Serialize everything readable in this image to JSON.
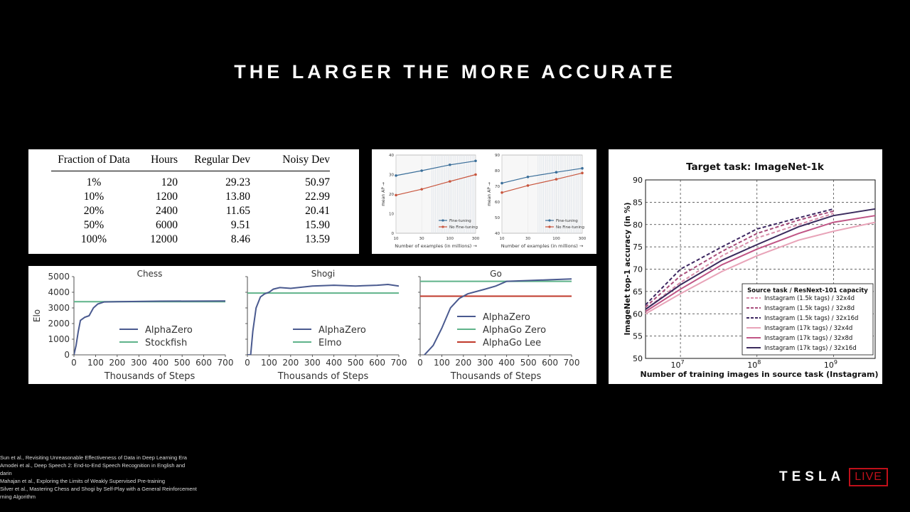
{
  "slide": {
    "title": "THE LARGER THE MORE ACCURATE",
    "references": [
      "Sun et al., Revisiting Unreasonable Effectiveness of Data in Deep Learning Era",
      "Amodei et al., Deep Speech 2: End-to-End Speech Recognition in English and",
      "darin",
      "Mahajan et al., Exploring the Limits of Weakly Supervised Pre-training",
      "Silver et al., Mastering Chess and Shogi by Self-Play with a General Reinforcement",
      "rning Algorithm"
    ],
    "logo": {
      "text": "TESLA",
      "live": "LIVE",
      "live_color": "#c0101a"
    }
  },
  "chart_data": [
    {
      "type": "table",
      "columns": [
        "Fraction of Data",
        "Hours",
        "Regular Dev",
        "Noisy Dev"
      ],
      "rows": [
        [
          "1%",
          "120",
          "29.23",
          "50.97"
        ],
        [
          "10%",
          "1200",
          "13.80",
          "22.99"
        ],
        [
          "20%",
          "2400",
          "11.65",
          "20.41"
        ],
        [
          "50%",
          "6000",
          "9.51",
          "15.90"
        ],
        [
          "100%",
          "12000",
          "8.46",
          "13.59"
        ]
      ]
    },
    {
      "type": "line",
      "xlabel": "Number of examples (in millions) →",
      "ylabel": "mean AP →",
      "x": [
        10,
        30,
        100,
        300
      ],
      "xticks": [
        "10",
        "30",
        "100",
        "300"
      ],
      "ylim": [
        0,
        40
      ],
      "yticks": [
        0,
        10,
        20,
        30,
        40
      ],
      "legend_position": "bottom-right",
      "series": [
        {
          "name": "Fine-tuning",
          "color": "#3b6f9a",
          "values": [
            29.5,
            32,
            35,
            37
          ]
        },
        {
          "name": "No Fine-tuning",
          "color": "#c8553d",
          "values": [
            19.5,
            22.5,
            26.5,
            30
          ]
        }
      ]
    },
    {
      "type": "line",
      "xlabel": "Number of examples (in millions) →",
      "ylabel": "mean AP →",
      "x": [
        10,
        30,
        100,
        300
      ],
      "xticks": [
        "10",
        "30",
        "100",
        "300"
      ],
      "ylim": [
        40,
        90
      ],
      "yticks": [
        40,
        50,
        60,
        70,
        80,
        90
      ],
      "legend_position": "bottom-right",
      "series": [
        {
          "name": "Fine-tuning",
          "color": "#3b6f9a",
          "values": [
            72,
            76,
            79,
            81.5
          ]
        },
        {
          "name": "No Fine-tuning",
          "color": "#c8553d",
          "values": [
            66,
            70.5,
            74.5,
            78.5
          ]
        }
      ]
    },
    {
      "type": "line",
      "title": "Chess",
      "xlabel": "Thousands of Steps",
      "ylabel": "Elo",
      "xlim": [
        0,
        700
      ],
      "ylim": [
        0,
        5000
      ],
      "xticks": [
        0,
        100,
        200,
        300,
        400,
        500,
        600,
        700
      ],
      "yticks": [
        0,
        1000,
        2000,
        3000,
        4000,
        5000
      ],
      "legend_position": "lower-right",
      "series": [
        {
          "name": "AlphaZero",
          "color": "#4a5a8f",
          "points": [
            [
              0,
              0
            ],
            [
              10,
              600
            ],
            [
              20,
              1500
            ],
            [
              30,
              2200
            ],
            [
              50,
              2400
            ],
            [
              70,
              2500
            ],
            [
              90,
              3000
            ],
            [
              110,
              3250
            ],
            [
              140,
              3380
            ],
            [
              200,
              3400
            ],
            [
              400,
              3430
            ],
            [
              700,
              3440
            ]
          ]
        },
        {
          "name": "Stockfish",
          "color": "#5fb38a",
          "points": [
            [
              0,
              3400
            ],
            [
              700,
              3400
            ]
          ]
        }
      ]
    },
    {
      "type": "line",
      "title": "Shogi",
      "xlabel": "Thousands of Steps",
      "ylabel": "",
      "xlim": [
        0,
        700
      ],
      "ylim": [
        0,
        5000
      ],
      "xticks": [
        0,
        100,
        200,
        300,
        400,
        500,
        600,
        700
      ],
      "yticks": [
        0,
        1000,
        2000,
        3000,
        4000,
        5000
      ],
      "legend_position": "lower-right",
      "series": [
        {
          "name": "AlphaZero",
          "color": "#4a5a8f",
          "points": [
            [
              0,
              0
            ],
            [
              15,
              0
            ],
            [
              25,
              1500
            ],
            [
              40,
              3000
            ],
            [
              60,
              3700
            ],
            [
              80,
              3900
            ],
            [
              100,
              4000
            ],
            [
              120,
              4200
            ],
            [
              150,
              4300
            ],
            [
              200,
              4250
            ],
            [
              300,
              4400
            ],
            [
              400,
              4450
            ],
            [
              500,
              4400
            ],
            [
              600,
              4450
            ],
            [
              650,
              4500
            ],
            [
              700,
              4400
            ]
          ]
        },
        {
          "name": "Elmo",
          "color": "#5fb38a",
          "points": [
            [
              0,
              3950
            ],
            [
              700,
              3950
            ]
          ]
        }
      ]
    },
    {
      "type": "line",
      "title": "Go",
      "xlabel": "Thousands of Steps",
      "ylabel": "",
      "xlim": [
        0,
        700
      ],
      "ylim": [
        0,
        5000
      ],
      "xticks": [
        0,
        100,
        200,
        300,
        400,
        500,
        600,
        700
      ],
      "yticks": [
        0,
        1000,
        2000,
        3000,
        4000,
        5000
      ],
      "legend_position": "lower-right",
      "series": [
        {
          "name": "AlphaZero",
          "color": "#4a5a8f",
          "points": [
            [
              0,
              -2000
            ],
            [
              20,
              0
            ],
            [
              60,
              600
            ],
            [
              100,
              1700
            ],
            [
              140,
              3000
            ],
            [
              180,
              3600
            ],
            [
              220,
              3900
            ],
            [
              300,
              4200
            ],
            [
              350,
              4400
            ],
            [
              400,
              4700
            ],
            [
              500,
              4750
            ],
            [
              600,
              4800
            ],
            [
              700,
              4850
            ]
          ]
        },
        {
          "name": "AlphaGo Zero",
          "color": "#5fb38a",
          "points": [
            [
              0,
              4700
            ],
            [
              700,
              4700
            ]
          ]
        },
        {
          "name": "AlphaGo Lee",
          "color": "#c0392b",
          "points": [
            [
              0,
              3750
            ],
            [
              700,
              3750
            ]
          ]
        }
      ]
    },
    {
      "type": "line",
      "title": "Target task: ImageNet-1k",
      "xlabel": "Number of training images in source task (Instagram)",
      "ylabel": "ImageNet top-1 accuracy (in %)",
      "xscale": "log",
      "xlim": [
        3500000,
        3500000000
      ],
      "ylim": [
        50,
        90
      ],
      "xticks": [
        10000000,
        100000000,
        1000000000
      ],
      "xticklabels": [
        {
          "base": "10",
          "exp": "7"
        },
        {
          "base": "10",
          "exp": "8"
        },
        {
          "base": "10",
          "exp": "9"
        }
      ],
      "yticks": [
        50,
        55,
        60,
        65,
        70,
        75,
        80,
        85,
        90
      ],
      "grid": true,
      "legend_position": "lower-right",
      "legend_title": "Source task / ResNext-101 capacity",
      "series": [
        {
          "name": "Instagram (1.5k tags) / 32x4d",
          "color": "#d98faa",
          "dash": true,
          "points": [
            [
              3500000,
              61
            ],
            [
              10000000,
              67
            ],
            [
              35000000,
              73
            ],
            [
              100000000,
              77
            ],
            [
              350000000,
              80
            ],
            [
              1000000000,
              82.5
            ]
          ]
        },
        {
          "name": "Instagram (1.5k tags) / 32x8d",
          "color": "#a84c7a",
          "dash": true,
          "points": [
            [
              3500000,
              61.5
            ],
            [
              10000000,
              68.5
            ],
            [
              35000000,
              74
            ],
            [
              100000000,
              78
            ],
            [
              350000000,
              81
            ],
            [
              1000000000,
              83
            ]
          ]
        },
        {
          "name": "Instagram (1.5k tags) / 32x16d",
          "color": "#3c2660",
          "dash": true,
          "points": [
            [
              3500000,
              62
            ],
            [
              10000000,
              70
            ],
            [
              35000000,
              75
            ],
            [
              100000000,
              79
            ],
            [
              350000000,
              81.5
            ],
            [
              1000000000,
              83.5
            ]
          ]
        },
        {
          "name": "Instagram (17k tags) / 32x4d",
          "color": "#e8a3b8",
          "dash": false,
          "points": [
            [
              3500000,
              60
            ],
            [
              10000000,
              64.5
            ],
            [
              35000000,
              69.5
            ],
            [
              100000000,
              73
            ],
            [
              350000000,
              76.5
            ],
            [
              1000000000,
              78.5
            ],
            [
              3500000000,
              80.5
            ]
          ]
        },
        {
          "name": "Instagram (17k tags) / 32x8d",
          "color": "#c05585",
          "dash": false,
          "points": [
            [
              3500000,
              60.5
            ],
            [
              10000000,
              65.5
            ],
            [
              35000000,
              71
            ],
            [
              100000000,
              74.5
            ],
            [
              350000000,
              78
            ],
            [
              1000000000,
              80.5
            ],
            [
              3500000000,
              82
            ]
          ]
        },
        {
          "name": "Instagram (17k tags) / 32x16d",
          "color": "#3a2a5c",
          "dash": false,
          "points": [
            [
              3500000,
              61
            ],
            [
              10000000,
              66.5
            ],
            [
              35000000,
              72
            ],
            [
              100000000,
              75.5
            ],
            [
              350000000,
              79.5
            ],
            [
              1000000000,
              82
            ],
            [
              3500000000,
              83.5
            ]
          ]
        }
      ]
    }
  ]
}
